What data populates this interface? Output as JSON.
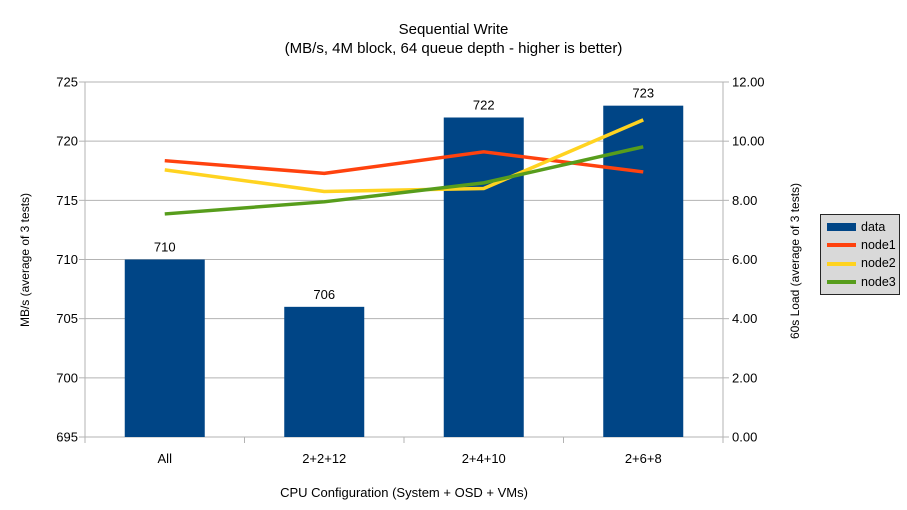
{
  "chart_data": {
    "type": "combo_bar_line",
    "title": "Sequential Write",
    "subtitle": "(MB/s, 4M block, 64 queue depth - higher is better)",
    "categories": [
      "All",
      "2+2+12",
      "2+4+10",
      "2+6+8"
    ],
    "xlabel": "CPU Configuration (System + OSD + VMs)",
    "ylabel_left": "MB/s (average of 3 tests)",
    "ylabel_right": "60s Load (average of 3 tests)",
    "axis_left": {
      "min": 695,
      "max": 725,
      "step": 5,
      "decimals": 0
    },
    "axis_right": {
      "min": 0,
      "max": 12,
      "step": 2,
      "decimals": 2
    },
    "grid": true,
    "legend_position": "right",
    "series": [
      {
        "name": "data",
        "type": "bar",
        "axis": "left",
        "color": "#004586",
        "values": [
          710,
          706,
          722,
          723
        ],
        "data_labels": true
      },
      {
        "name": "node1",
        "type": "line",
        "axis": "right",
        "color": "#FF420E",
        "values": [
          9.34,
          8.91,
          9.64,
          8.96
        ]
      },
      {
        "name": "node2",
        "type": "line",
        "axis": "right",
        "color": "#FFD320",
        "values": [
          9.03,
          8.3,
          8.4,
          10.72
        ]
      },
      {
        "name": "node3",
        "type": "line",
        "axis": "right",
        "color": "#579D1C",
        "values": [
          7.54,
          7.95,
          8.59,
          9.81
        ]
      }
    ],
    "colors": {
      "background": "#ffffff",
      "grid": "#b3b3b3",
      "axis": "#b3b3b3",
      "text": "#000000",
      "legend_bg": "#d9d9d9",
      "legend_border": "#262626"
    }
  }
}
